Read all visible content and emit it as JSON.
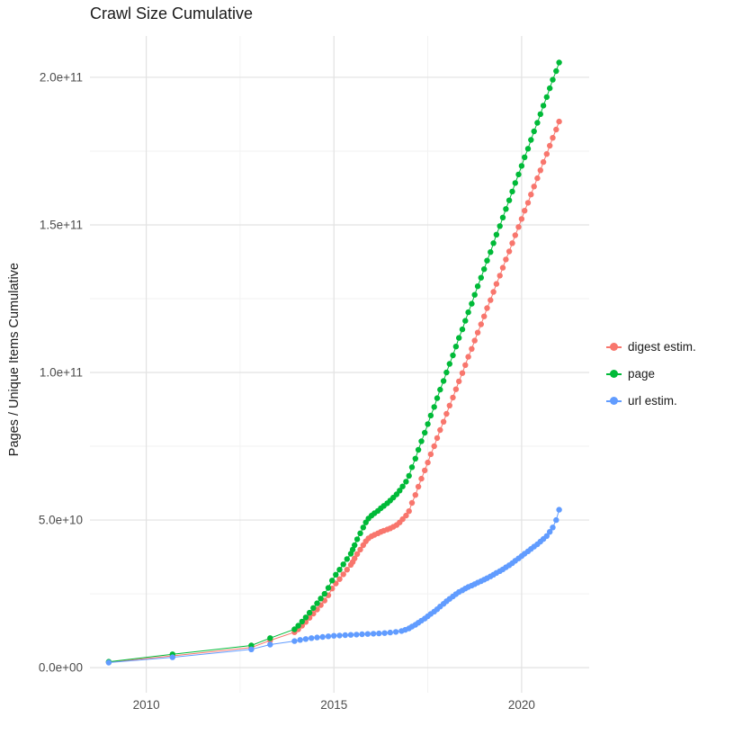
{
  "chart_data": {
    "type": "scatter",
    "title": "Crawl Size Cumulative",
    "xlabel": "",
    "ylabel": "Pages / Unique Items Cumulative",
    "x_ticks": [
      2010,
      2015,
      2020
    ],
    "x_tick_labels": [
      "2010",
      "2015",
      "2020"
    ],
    "x_minor": [
      2012.5,
      2017.5
    ],
    "y_ticks": [
      0,
      50,
      100,
      150,
      200
    ],
    "y_tick_labels": [
      "0.0e+00",
      "5.0e+10",
      "1.0e+11",
      "1.5e+11",
      "2.0e+11"
    ],
    "y_minor": [
      25,
      75,
      125,
      175
    ],
    "xlim": [
      2008.5,
      2021.8
    ],
    "ylim": [
      -8.5,
      214
    ],
    "y_value_unit": 1000000000.0,
    "grid": true,
    "legend_position": "right",
    "colors": {
      "grid_major": "#e2e2e2",
      "grid_minor": "#f2f2f2",
      "tick_label": "#4d4d4d",
      "title": "#1a1a1a",
      "panel_background": "#ffffff"
    },
    "series": [
      {
        "id": "digest-estim",
        "name": "digest estim.",
        "color": "#F8766D",
        "points": [
          [
            2009,
            1.8
          ],
          [
            2010.7,
            4
          ],
          [
            2012.8,
            6.8
          ],
          [
            2013.3,
            9.2
          ],
          [
            2013.95,
            12
          ],
          [
            2014.05,
            13
          ],
          [
            2014.15,
            14.2
          ],
          [
            2014.25,
            15.5
          ],
          [
            2014.35,
            16.9
          ],
          [
            2014.45,
            18.3
          ],
          [
            2014.55,
            19.7
          ],
          [
            2014.65,
            21.2
          ],
          [
            2014.75,
            22.7
          ],
          [
            2014.85,
            24.5
          ],
          [
            2014.95,
            26.8
          ],
          [
            2015.05,
            28.5
          ],
          [
            2015.15,
            30
          ],
          [
            2015.25,
            31.6
          ],
          [
            2015.35,
            33.2
          ],
          [
            2015.45,
            34.8
          ],
          [
            2015.5,
            35.8
          ],
          [
            2015.55,
            37
          ],
          [
            2015.62,
            38.5
          ],
          [
            2015.7,
            40
          ],
          [
            2015.78,
            41.5
          ],
          [
            2015.85,
            42.8
          ],
          [
            2015.92,
            43.8
          ],
          [
            2016,
            44.5
          ],
          [
            2016.08,
            45
          ],
          [
            2016.17,
            45.5
          ],
          [
            2016.25,
            46
          ],
          [
            2016.33,
            46.4
          ],
          [
            2016.42,
            46.8
          ],
          [
            2016.5,
            47.2
          ],
          [
            2016.58,
            47.7
          ],
          [
            2016.67,
            48.3
          ],
          [
            2016.75,
            49.2
          ],
          [
            2016.83,
            50.3
          ],
          [
            2016.92,
            51.5
          ],
          [
            2017,
            53
          ],
          [
            2017.08,
            55.8
          ],
          [
            2017.17,
            58.5
          ],
          [
            2017.25,
            61.3
          ],
          [
            2017.33,
            64
          ],
          [
            2017.42,
            66.8
          ],
          [
            2017.5,
            69.5
          ],
          [
            2017.58,
            72.3
          ],
          [
            2017.67,
            75
          ],
          [
            2017.75,
            77.8
          ],
          [
            2017.83,
            80.5
          ],
          [
            2017.92,
            83.3
          ],
          [
            2018,
            86
          ],
          [
            2018.08,
            88.8
          ],
          [
            2018.17,
            91.5
          ],
          [
            2018.25,
            94.3
          ],
          [
            2018.33,
            97
          ],
          [
            2018.42,
            99.8
          ],
          [
            2018.5,
            102.5
          ],
          [
            2018.58,
            105.3
          ],
          [
            2018.67,
            108
          ],
          [
            2018.75,
            110.8
          ],
          [
            2018.83,
            113.5
          ],
          [
            2018.92,
            116.3
          ],
          [
            2019,
            119
          ],
          [
            2019.08,
            121.8
          ],
          [
            2019.17,
            124.5
          ],
          [
            2019.25,
            127.3
          ],
          [
            2019.33,
            130
          ],
          [
            2019.42,
            132.8
          ],
          [
            2019.5,
            135.5
          ],
          [
            2019.58,
            138.3
          ],
          [
            2019.67,
            141
          ],
          [
            2019.75,
            143.8
          ],
          [
            2019.83,
            146.5
          ],
          [
            2019.92,
            149.3
          ],
          [
            2020,
            152
          ],
          [
            2020.08,
            154.8
          ],
          [
            2020.17,
            157.5
          ],
          [
            2020.25,
            160.3
          ],
          [
            2020.33,
            163
          ],
          [
            2020.42,
            165.8
          ],
          [
            2020.5,
            168.5
          ],
          [
            2020.58,
            171.3
          ],
          [
            2020.67,
            174
          ],
          [
            2020.75,
            176.8
          ],
          [
            2020.83,
            179.5
          ],
          [
            2020.92,
            182.3
          ],
          [
            2021,
            185
          ]
        ]
      },
      {
        "id": "page",
        "name": "page",
        "color": "#00BA38",
        "points": [
          [
            2009,
            2
          ],
          [
            2010.7,
            4.5
          ],
          [
            2012.8,
            7.5
          ],
          [
            2013.3,
            10
          ],
          [
            2013.95,
            13
          ],
          [
            2014.05,
            14.2
          ],
          [
            2014.15,
            15.6
          ],
          [
            2014.25,
            17
          ],
          [
            2014.35,
            18.6
          ],
          [
            2014.45,
            20.2
          ],
          [
            2014.55,
            21.8
          ],
          [
            2014.65,
            23.4
          ],
          [
            2014.75,
            25
          ],
          [
            2014.85,
            27
          ],
          [
            2014.95,
            29.5
          ],
          [
            2015.05,
            31.5
          ],
          [
            2015.15,
            33.2
          ],
          [
            2015.25,
            35
          ],
          [
            2015.35,
            36.8
          ],
          [
            2015.45,
            38.6
          ],
          [
            2015.5,
            40
          ],
          [
            2015.55,
            41.5
          ],
          [
            2015.62,
            43.5
          ],
          [
            2015.7,
            45.5
          ],
          [
            2015.78,
            47.5
          ],
          [
            2015.85,
            49.2
          ],
          [
            2015.92,
            50.5
          ],
          [
            2016,
            51.5
          ],
          [
            2016.08,
            52.3
          ],
          [
            2016.17,
            53.1
          ],
          [
            2016.25,
            54
          ],
          [
            2016.33,
            54.8
          ],
          [
            2016.42,
            55.7
          ],
          [
            2016.5,
            56.6
          ],
          [
            2016.58,
            57.6
          ],
          [
            2016.67,
            58.7
          ],
          [
            2016.75,
            60
          ],
          [
            2016.83,
            61.4
          ],
          [
            2016.92,
            63
          ],
          [
            2017,
            65
          ],
          [
            2017.08,
            67.9
          ],
          [
            2017.17,
            70.8
          ],
          [
            2017.25,
            73.8
          ],
          [
            2017.33,
            76.7
          ],
          [
            2017.42,
            79.6
          ],
          [
            2017.5,
            82.5
          ],
          [
            2017.58,
            85.4
          ],
          [
            2017.67,
            88.3
          ],
          [
            2017.75,
            91.3
          ],
          [
            2017.83,
            94.2
          ],
          [
            2017.92,
            97.1
          ],
          [
            2018,
            100
          ],
          [
            2018.08,
            102.9
          ],
          [
            2018.17,
            105.8
          ],
          [
            2018.25,
            108.8
          ],
          [
            2018.33,
            111.7
          ],
          [
            2018.42,
            114.6
          ],
          [
            2018.5,
            117.5
          ],
          [
            2018.58,
            120.4
          ],
          [
            2018.67,
            123.3
          ],
          [
            2018.75,
            126.3
          ],
          [
            2018.83,
            129.2
          ],
          [
            2018.92,
            132.1
          ],
          [
            2019,
            135
          ],
          [
            2019.08,
            137.9
          ],
          [
            2019.17,
            140.8
          ],
          [
            2019.25,
            143.8
          ],
          [
            2019.33,
            146.7
          ],
          [
            2019.42,
            149.6
          ],
          [
            2019.5,
            152.5
          ],
          [
            2019.58,
            155.4
          ],
          [
            2019.67,
            158.3
          ],
          [
            2019.75,
            161.3
          ],
          [
            2019.83,
            164.2
          ],
          [
            2019.92,
            167.1
          ],
          [
            2020,
            170
          ],
          [
            2020.08,
            172.9
          ],
          [
            2020.17,
            175.8
          ],
          [
            2020.25,
            178.8
          ],
          [
            2020.33,
            181.7
          ],
          [
            2020.42,
            184.6
          ],
          [
            2020.5,
            187.5
          ],
          [
            2020.58,
            190.4
          ],
          [
            2020.67,
            193.3
          ],
          [
            2020.75,
            196.3
          ],
          [
            2020.83,
            199.2
          ],
          [
            2020.92,
            202.1
          ],
          [
            2021,
            205
          ]
        ]
      },
      {
        "id": "url-estim",
        "name": "url estim.",
        "color": "#619CFF",
        "points": [
          [
            2009,
            1.7
          ],
          [
            2010.7,
            3.5
          ],
          [
            2012.8,
            6.2
          ],
          [
            2013.3,
            7.8
          ],
          [
            2013.95,
            9
          ],
          [
            2014.1,
            9.4
          ],
          [
            2014.25,
            9.7
          ],
          [
            2014.4,
            10
          ],
          [
            2014.55,
            10.2
          ],
          [
            2014.7,
            10.4
          ],
          [
            2014.85,
            10.6
          ],
          [
            2015,
            10.8
          ],
          [
            2015.15,
            10.9
          ],
          [
            2015.3,
            11
          ],
          [
            2015.45,
            11.1
          ],
          [
            2015.6,
            11.2
          ],
          [
            2015.75,
            11.3
          ],
          [
            2015.9,
            11.4
          ],
          [
            2016.05,
            11.5
          ],
          [
            2016.2,
            11.6
          ],
          [
            2016.35,
            11.7
          ],
          [
            2016.5,
            11.9
          ],
          [
            2016.65,
            12.1
          ],
          [
            2016.8,
            12.4
          ],
          [
            2016.9,
            12.8
          ],
          [
            2017,
            13.3
          ],
          [
            2017.08,
            13.9
          ],
          [
            2017.17,
            14.5
          ],
          [
            2017.25,
            15.2
          ],
          [
            2017.33,
            15.9
          ],
          [
            2017.42,
            16.6
          ],
          [
            2017.5,
            17.4
          ],
          [
            2017.58,
            18.2
          ],
          [
            2017.67,
            19
          ],
          [
            2017.75,
            19.8
          ],
          [
            2017.83,
            20.7
          ],
          [
            2017.92,
            21.6
          ],
          [
            2018,
            22.5
          ],
          [
            2018.08,
            23.3
          ],
          [
            2018.17,
            24.1
          ],
          [
            2018.25,
            24.9
          ],
          [
            2018.33,
            25.6
          ],
          [
            2018.42,
            26.2
          ],
          [
            2018.5,
            26.8
          ],
          [
            2018.58,
            27.3
          ],
          [
            2018.67,
            27.8
          ],
          [
            2018.75,
            28.3
          ],
          [
            2018.83,
            28.8
          ],
          [
            2018.92,
            29.3
          ],
          [
            2019,
            29.8
          ],
          [
            2019.08,
            30.3
          ],
          [
            2019.17,
            30.9
          ],
          [
            2019.25,
            31.5
          ],
          [
            2019.33,
            32.1
          ],
          [
            2019.42,
            32.7
          ],
          [
            2019.5,
            33.3
          ],
          [
            2019.58,
            34
          ],
          [
            2019.67,
            34.7
          ],
          [
            2019.75,
            35.4
          ],
          [
            2019.83,
            36.2
          ],
          [
            2019.92,
            37
          ],
          [
            2020,
            37.8
          ],
          [
            2020.08,
            38.6
          ],
          [
            2020.17,
            39.4
          ],
          [
            2020.25,
            40.2
          ],
          [
            2020.33,
            41
          ],
          [
            2020.42,
            41.8
          ],
          [
            2020.5,
            42.7
          ],
          [
            2020.58,
            43.6
          ],
          [
            2020.67,
            44.6
          ],
          [
            2020.75,
            46
          ],
          [
            2020.83,
            47.5
          ],
          [
            2020.92,
            50
          ],
          [
            2021,
            53.5
          ]
        ]
      }
    ]
  }
}
